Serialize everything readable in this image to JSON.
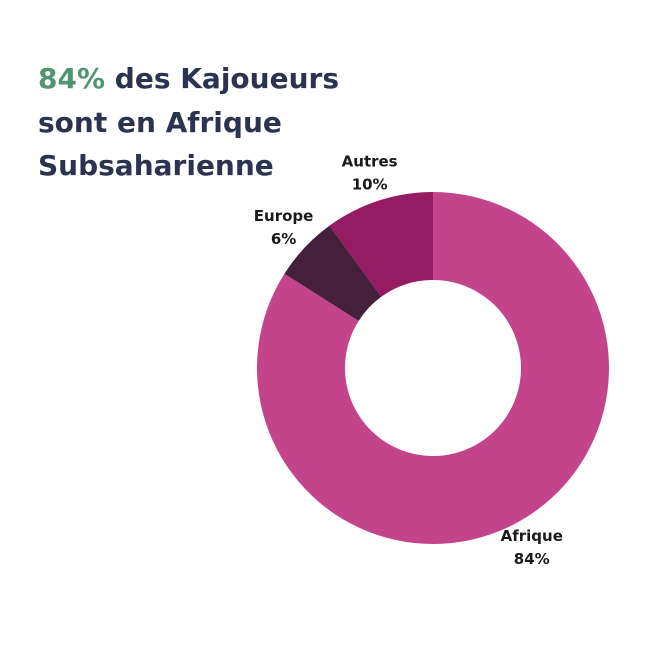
{
  "chart_data": {
    "type": "donut",
    "title_highlight": "84%",
    "title_lines": [
      "des Kajoueurs",
      "sont en Afrique",
      "Subsaharienne"
    ],
    "categories": [
      "Afrique",
      "Europe",
      "Autres"
    ],
    "values": [
      84,
      6,
      10
    ],
    "value_labels": [
      "84%",
      "6%",
      "10%"
    ],
    "colors": [
      "#c4448c",
      "#45203a",
      "#951c62"
    ]
  }
}
